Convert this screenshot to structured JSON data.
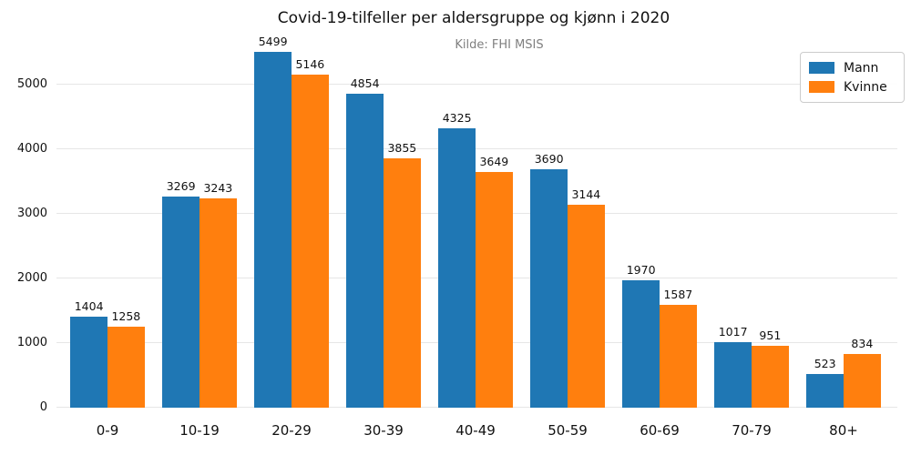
{
  "chart_data": {
    "type": "bar",
    "title": "Covid-19-tilfeller per aldersgruppe og kjønn i 2020",
    "subtitle": "Kilde: FHI MSIS",
    "xlabel": "",
    "ylabel": "",
    "categories": [
      "0-9",
      "10-19",
      "20-29",
      "30-39",
      "40-49",
      "50-59",
      "60-69",
      "70-79",
      "80+"
    ],
    "series": [
      {
        "name": "Mann",
        "color": "#1f77b4",
        "values": [
          1404,
          3269,
          5499,
          4854,
          4325,
          3690,
          1970,
          1017,
          523
        ]
      },
      {
        "name": "Kvinne",
        "color": "#ff7f0e",
        "values": [
          1258,
          3243,
          5146,
          3855,
          3649,
          3144,
          1587,
          951,
          834
        ]
      }
    ],
    "yticks": [
      0,
      1000,
      2000,
      3000,
      4000,
      5000
    ],
    "ylim": [
      0,
      5600
    ],
    "grid": true,
    "value_labels": true,
    "legend_position": "upper right",
    "colors": {
      "background": "#ffffff",
      "grid": "#e6e6e6",
      "text": "#111111",
      "subtitle_text": "#7f7f7f",
      "legend_border": "#cccccc"
    }
  }
}
